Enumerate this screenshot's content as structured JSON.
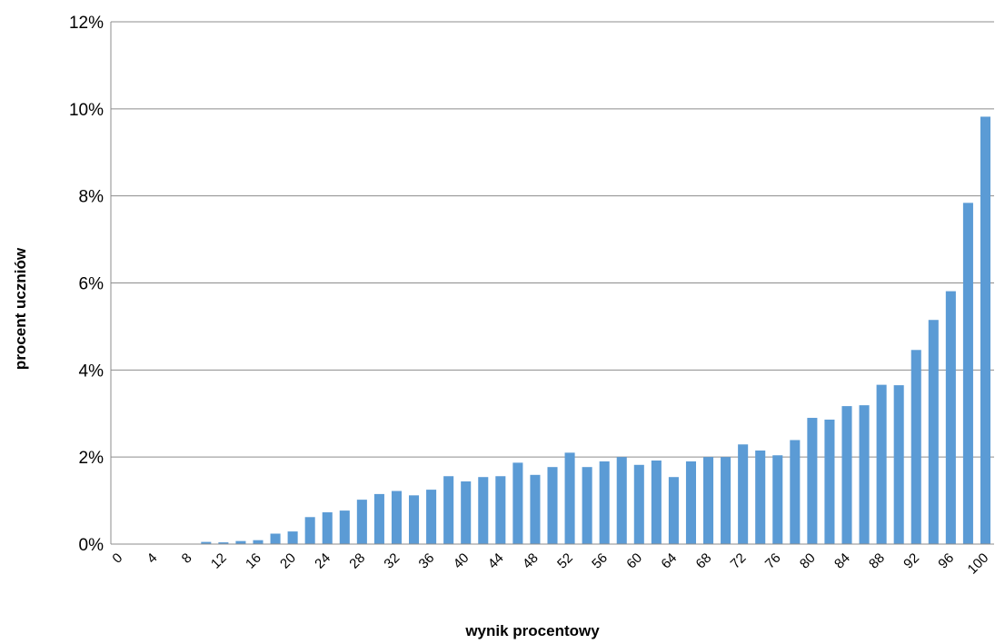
{
  "chart_data": {
    "type": "bar",
    "title": "",
    "xlabel": "wynik procentowy",
    "ylabel": "procent uczniów",
    "ylim": [
      0,
      12
    ],
    "y_ticks": [
      "0%",
      "2%",
      "4%",
      "6%",
      "8%",
      "10%",
      "12%"
    ],
    "y_tick_values": [
      0,
      2,
      4,
      6,
      8,
      10,
      12
    ],
    "grid": true,
    "legend": "none",
    "bar_color": "#5b9bd5",
    "categories": [
      "0",
      "2",
      "4",
      "6",
      "8",
      "10",
      "12",
      "14",
      "16",
      "18",
      "20",
      "22",
      "24",
      "26",
      "28",
      "30",
      "32",
      "34",
      "36",
      "38",
      "40",
      "42",
      "44",
      "46",
      "48",
      "50",
      "52",
      "54",
      "56",
      "58",
      "60",
      "62",
      "64",
      "66",
      "68",
      "70",
      "72",
      "74",
      "76",
      "78",
      "80",
      "82",
      "84",
      "86",
      "88",
      "90",
      "92",
      "94",
      "96",
      "98",
      "100"
    ],
    "x_tick_labels": [
      "0",
      "4",
      "8",
      "12",
      "16",
      "20",
      "24",
      "28",
      "32",
      "36",
      "40",
      "44",
      "48",
      "52",
      "56",
      "60",
      "64",
      "68",
      "72",
      "76",
      "80",
      "84",
      "88",
      "92",
      "96",
      "100"
    ],
    "values": [
      0.01,
      0.01,
      0.01,
      0.01,
      0.01,
      0.05,
      0.04,
      0.07,
      0.09,
      0.24,
      0.29,
      0.62,
      0.73,
      0.77,
      1.02,
      1.15,
      1.22,
      1.12,
      1.25,
      1.56,
      1.44,
      1.54,
      1.56,
      1.87,
      1.59,
      1.77,
      2.1,
      1.77,
      1.9,
      2.0,
      1.82,
      1.92,
      1.54,
      1.9,
      2.0,
      2.0,
      2.29,
      2.15,
      2.04,
      2.39,
      2.9,
      2.86,
      3.17,
      3.19,
      3.66,
      3.65,
      4.46,
      5.15,
      5.81,
      7.84,
      9.82
    ]
  }
}
